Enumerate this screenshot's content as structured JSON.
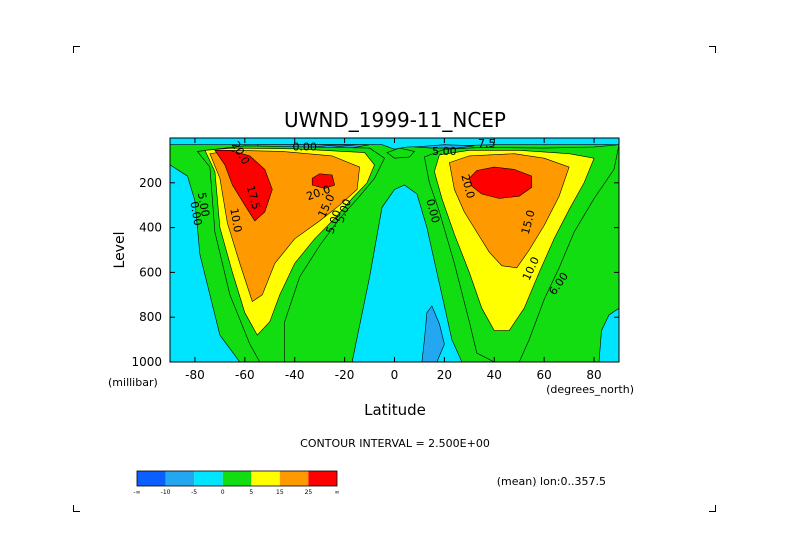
{
  "chart_data": {
    "type": "heatmap",
    "title": "UWND_1999-11_NCEP",
    "xlabel": "Latitude",
    "ylabel": "Level",
    "x_unit_label": "(degrees_north)",
    "y_unit_label": "(millibar)",
    "xlim": [
      -90,
      90
    ],
    "ylim": [
      1000,
      0
    ],
    "x_ticks": [
      -80,
      -60,
      -40,
      -20,
      0,
      20,
      40,
      60,
      80
    ],
    "x_tick_labels": [
      "-80",
      "-60",
      "-40",
      "-20",
      "0",
      "20",
      "40",
      "60",
      "80"
    ],
    "y_ticks": [
      200,
      400,
      600,
      800,
      1000
    ],
    "y_tick_labels": [
      "200",
      "400",
      "600",
      "800",
      "1000"
    ],
    "contour_interval_text": "CONTOUR INTERVAL = 2.500E+00",
    "subset_text": "(mean) lon:0..357.5",
    "contour_labels": [
      {
        "text": "5.00",
        "lat": -78,
        "lev": 300,
        "rot": 80
      },
      {
        "text": "0.00",
        "lat": -81,
        "lev": 340,
        "rot": 80
      },
      {
        "text": "20.0",
        "lat": -63,
        "lev": 75,
        "rot": 60
      },
      {
        "text": "17.5",
        "lat": -58,
        "lev": 270,
        "rot": 75
      },
      {
        "text": "10.0",
        "lat": -65,
        "lev": 370,
        "rot": 80
      },
      {
        "text": "20.0",
        "lat": -30,
        "lev": 260,
        "rot": -20
      },
      {
        "text": "15.0",
        "lat": -26,
        "lev": 310,
        "rot": -65
      },
      {
        "text": "5.00",
        "lat": -19,
        "lev": 330,
        "rot": -70
      },
      {
        "text": "5.00",
        "lat": -23,
        "lev": 380,
        "rot": -70
      },
      {
        "text": "0.00",
        "lat": -36,
        "lev": 55,
        "rot": 0
      },
      {
        "text": "5.00",
        "lat": 20,
        "lev": 75,
        "rot": 0
      },
      {
        "text": "7.5",
        "lat": 37,
        "lev": 40,
        "rot": 0
      },
      {
        "text": "20.0",
        "lat": 28,
        "lev": 220,
        "rot": 75
      },
      {
        "text": "0.00",
        "lat": 14,
        "lev": 330,
        "rot": 75
      },
      {
        "text": "15.0",
        "lat": 55,
        "lev": 380,
        "rot": -75
      },
      {
        "text": "10.0",
        "lat": 56,
        "lev": 590,
        "rot": -65
      },
      {
        "text": "6.00",
        "lat": 67,
        "lev": 660,
        "rot": -55
      }
    ],
    "regions": [
      {
        "value": 5,
        "points": [
          [
            -90,
            30
          ],
          [
            -75,
            30
          ],
          [
            -40,
            30
          ],
          [
            -5,
            30
          ],
          [
            0,
            50
          ],
          [
            5,
            40
          ],
          [
            40,
            30
          ],
          [
            90,
            30
          ],
          [
            90,
            1000
          ],
          [
            -90,
            1000
          ]
        ]
      },
      {
        "value": 0,
        "points": [
          [
            -90,
            120
          ],
          [
            -83,
            170
          ],
          [
            -80,
            280
          ],
          [
            -78,
            520
          ],
          [
            -70,
            880
          ],
          [
            -62,
            1000
          ],
          [
            -90,
            1000
          ]
        ]
      },
      {
        "value": 0,
        "points": [
          [
            -10,
            620
          ],
          [
            -5,
            310
          ],
          [
            0,
            230
          ],
          [
            4,
            210
          ],
          [
            9,
            250
          ],
          [
            13,
            400
          ],
          [
            19,
            700
          ],
          [
            23,
            900
          ],
          [
            27,
            1000
          ],
          [
            -17,
            1000
          ]
        ]
      },
      {
        "value": 0,
        "points": [
          [
            82,
            1000
          ],
          [
            83,
            860
          ],
          [
            86,
            790
          ],
          [
            90,
            760
          ],
          [
            90,
            1000
          ]
        ]
      },
      {
        "value": -5,
        "points": [
          [
            11,
            1000
          ],
          [
            12,
            900
          ],
          [
            13,
            780
          ],
          [
            15,
            750
          ],
          [
            18,
            830
          ],
          [
            20,
            920
          ],
          [
            17,
            1000
          ]
        ]
      },
      {
        "value": -5,
        "points": [
          [
            -55,
            40
          ],
          [
            -42,
            45
          ],
          [
            -30,
            38
          ],
          [
            -20,
            50
          ],
          [
            -10,
            30
          ],
          [
            -55,
            30
          ]
        ]
      },
      {
        "value": -5,
        "points": [
          [
            8,
            40
          ],
          [
            20,
            30
          ],
          [
            32,
            35
          ],
          [
            25,
            45
          ],
          [
            15,
            45
          ]
        ]
      },
      {
        "value": -10,
        "points": [
          [
            -30,
            30
          ],
          [
            -22,
            38
          ],
          [
            -15,
            30
          ]
        ]
      },
      {
        "value": 5,
        "points": [
          [
            -79,
            60
          ],
          [
            -74,
            130
          ],
          [
            -72,
            420
          ],
          [
            -66,
            700
          ],
          [
            -58,
            920
          ],
          [
            -54,
            1000
          ],
          [
            -44,
            1000
          ],
          [
            -44,
            820
          ],
          [
            -38,
            620
          ],
          [
            -30,
            480
          ],
          [
            -22,
            360
          ],
          [
            -14,
            260
          ],
          [
            -8,
            180
          ],
          [
            -4,
            90
          ],
          [
            -10,
            45
          ],
          [
            -35,
            40
          ],
          [
            -60,
            35
          ]
        ]
      },
      {
        "value": 5,
        "points": [
          [
            -3,
            65
          ],
          [
            2,
            45
          ],
          [
            8,
            60
          ],
          [
            6,
            85
          ],
          [
            0,
            90
          ]
        ]
      },
      {
        "value": 5,
        "points": [
          [
            12,
            85
          ],
          [
            20,
            50
          ],
          [
            35,
            42
          ],
          [
            60,
            45
          ],
          [
            80,
            40
          ],
          [
            90,
            30
          ],
          [
            88,
            140
          ],
          [
            80,
            270
          ],
          [
            72,
            420
          ],
          [
            66,
            580
          ],
          [
            60,
            720
          ],
          [
            54,
            900
          ],
          [
            50,
            1000
          ],
          [
            40,
            1000
          ],
          [
            33,
            960
          ],
          [
            30,
            820
          ],
          [
            24,
            560
          ],
          [
            18,
            330
          ],
          [
            14,
            200
          ]
        ]
      },
      {
        "value": 10,
        "points": [
          [
            -76,
            55
          ],
          [
            -72,
            150
          ],
          [
            -70,
            400
          ],
          [
            -65,
            600
          ],
          [
            -60,
            780
          ],
          [
            -55,
            880
          ],
          [
            -50,
            820
          ],
          [
            -46,
            700
          ],
          [
            -40,
            560
          ],
          [
            -32,
            450
          ],
          [
            -24,
            360
          ],
          [
            -17,
            270
          ],
          [
            -11,
            200
          ],
          [
            -8,
            120
          ],
          [
            -12,
            65
          ],
          [
            -40,
            48
          ],
          [
            -65,
            45
          ]
        ]
      },
      {
        "value": 10,
        "points": [
          [
            18,
            75
          ],
          [
            30,
            55
          ],
          [
            50,
            55
          ],
          [
            70,
            70
          ],
          [
            80,
            90
          ],
          [
            76,
            200
          ],
          [
            70,
            320
          ],
          [
            64,
            450
          ],
          [
            58,
            600
          ],
          [
            52,
            760
          ],
          [
            46,
            860
          ],
          [
            40,
            860
          ],
          [
            35,
            760
          ],
          [
            30,
            600
          ],
          [
            24,
            430
          ],
          [
            19,
            270
          ],
          [
            16,
            150
          ]
        ]
      },
      {
        "value": 15,
        "points": [
          [
            -74,
            70
          ],
          [
            -70,
            180
          ],
          [
            -67,
            380
          ],
          [
            -62,
            560
          ],
          [
            -57,
            730
          ],
          [
            -53,
            700
          ],
          [
            -48,
            560
          ],
          [
            -40,
            450
          ],
          [
            -30,
            370
          ],
          [
            -22,
            300
          ],
          [
            -15,
            230
          ],
          [
            -14,
            130
          ],
          [
            -25,
            80
          ],
          [
            -45,
            60
          ],
          [
            -65,
            55
          ]
        ]
      },
      {
        "value": 15,
        "points": [
          [
            22,
            110
          ],
          [
            30,
            80
          ],
          [
            48,
            70
          ],
          [
            60,
            90
          ],
          [
            70,
            130
          ],
          [
            66,
            260
          ],
          [
            60,
            390
          ],
          [
            54,
            500
          ],
          [
            49,
            580
          ],
          [
            43,
            570
          ],
          [
            38,
            510
          ],
          [
            33,
            420
          ],
          [
            28,
            330
          ],
          [
            24,
            230
          ]
        ]
      },
      {
        "value": 20,
        "points": [
          [
            -72,
            55
          ],
          [
            -68,
            120
          ],
          [
            -65,
            210
          ],
          [
            -60,
            300
          ],
          [
            -56,
            370
          ],
          [
            -52,
            330
          ],
          [
            -49,
            230
          ],
          [
            -52,
            140
          ],
          [
            -58,
            80
          ],
          [
            -66,
            55
          ]
        ]
      },
      {
        "value": 20,
        "points": [
          [
            -33,
            180
          ],
          [
            -30,
            160
          ],
          [
            -25,
            165
          ],
          [
            -24,
            210
          ],
          [
            -28,
            225
          ],
          [
            -33,
            210
          ]
        ]
      },
      {
        "value": 20,
        "points": [
          [
            30,
            180
          ],
          [
            33,
            145
          ],
          [
            40,
            130
          ],
          [
            48,
            140
          ],
          [
            55,
            170
          ],
          [
            55,
            220
          ],
          [
            50,
            260
          ],
          [
            42,
            270
          ],
          [
            35,
            250
          ],
          [
            31,
            215
          ]
        ]
      }
    ],
    "colorbar": {
      "colors": [
        "#0b5fff",
        "#22a7f0",
        "#00e5ff",
        "#11dd11",
        "#ffff00",
        "#ff9900",
        "#ff0000"
      ],
      "labels": [
        "-∞",
        "-10",
        "-5",
        "0",
        "5",
        "15",
        "25",
        "∞"
      ]
    },
    "level_colors": {
      "-10": "#0b5fff",
      "-5": "#22a7f0",
      "0": "#00e5ff",
      "5": "#11dd11",
      "10": "#ffff00",
      "15": "#ff9900",
      "20": "#ff0000"
    }
  }
}
